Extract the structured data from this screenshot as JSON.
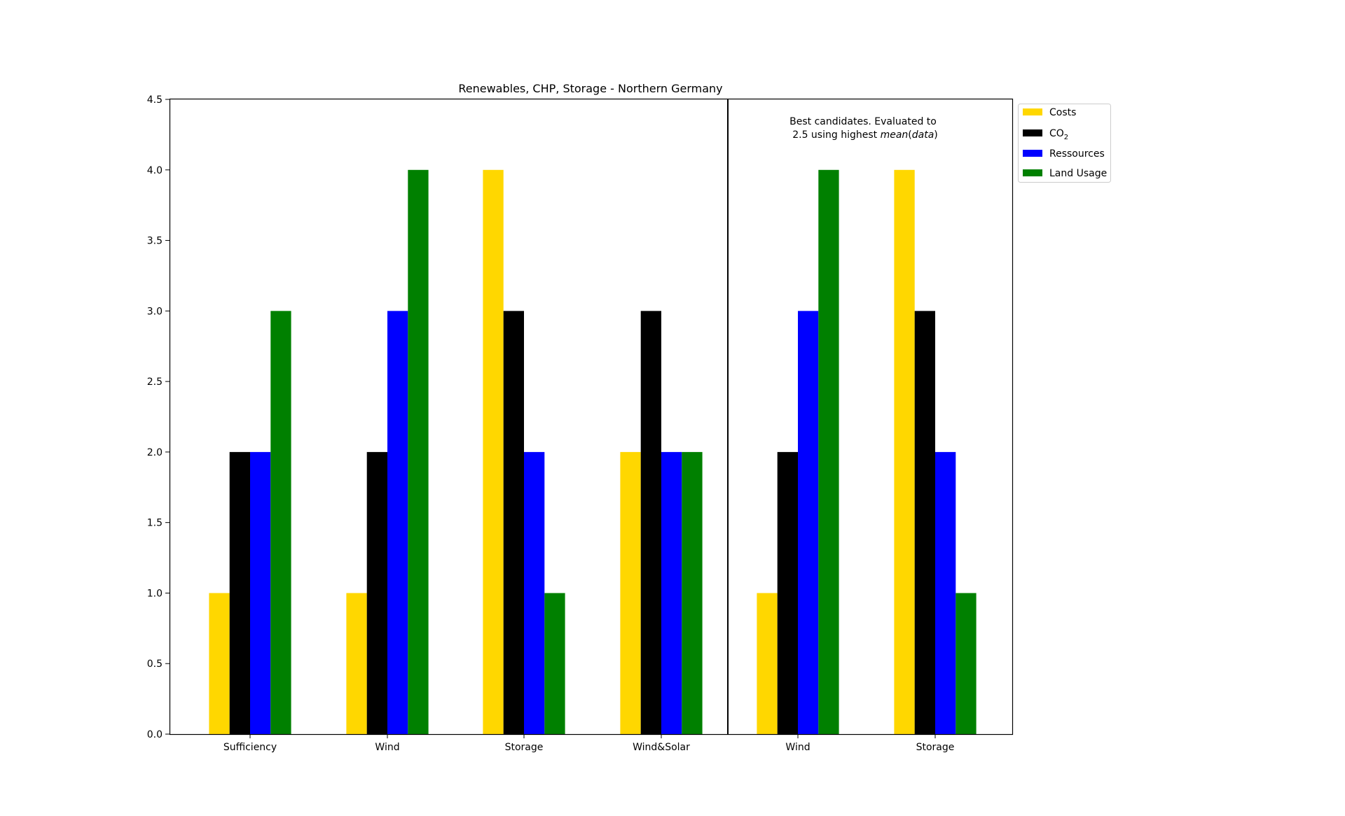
{
  "chart_data": {
    "type": "bar",
    "title": "Renewables, CHP, Storage - Northern Germany",
    "xlabel": "",
    "ylabel": "",
    "ylim": [
      0,
      4.5
    ],
    "yticks": [
      "0.0",
      "0.5",
      "1.0",
      "1.5",
      "2.0",
      "2.5",
      "3.0",
      "3.5",
      "4.0",
      "4.5"
    ],
    "grid": false,
    "legend_position": "outside-top-right",
    "categories": [
      "Sufficiency",
      "Wind",
      "Storage",
      "Wind&Solar",
      "Wind",
      "Storage"
    ],
    "series": [
      {
        "name": "Costs",
        "color": "#ffd700",
        "values": [
          1,
          1,
          4,
          2,
          1,
          4
        ]
      },
      {
        "name": "CO",
        "name_subscript": "2",
        "color": "#000000",
        "values": [
          2,
          2,
          3,
          3,
          2,
          3
        ]
      },
      {
        "name": "Ressources",
        "color": "#0000ff",
        "values": [
          2,
          3,
          2,
          2,
          3,
          2
        ]
      },
      {
        "name": "Land Usage",
        "color": "#008000",
        "values": [
          3,
          4,
          1,
          2,
          4,
          1
        ]
      }
    ],
    "annotation": {
      "line1": "Best candidates. Evaluated to",
      "line2_prefix": "2.5 using highest ",
      "line2_italic_1": "mean",
      "line2_paren_open": "(",
      "line2_italic_2": "data",
      "line2_paren_close": ")"
    }
  }
}
